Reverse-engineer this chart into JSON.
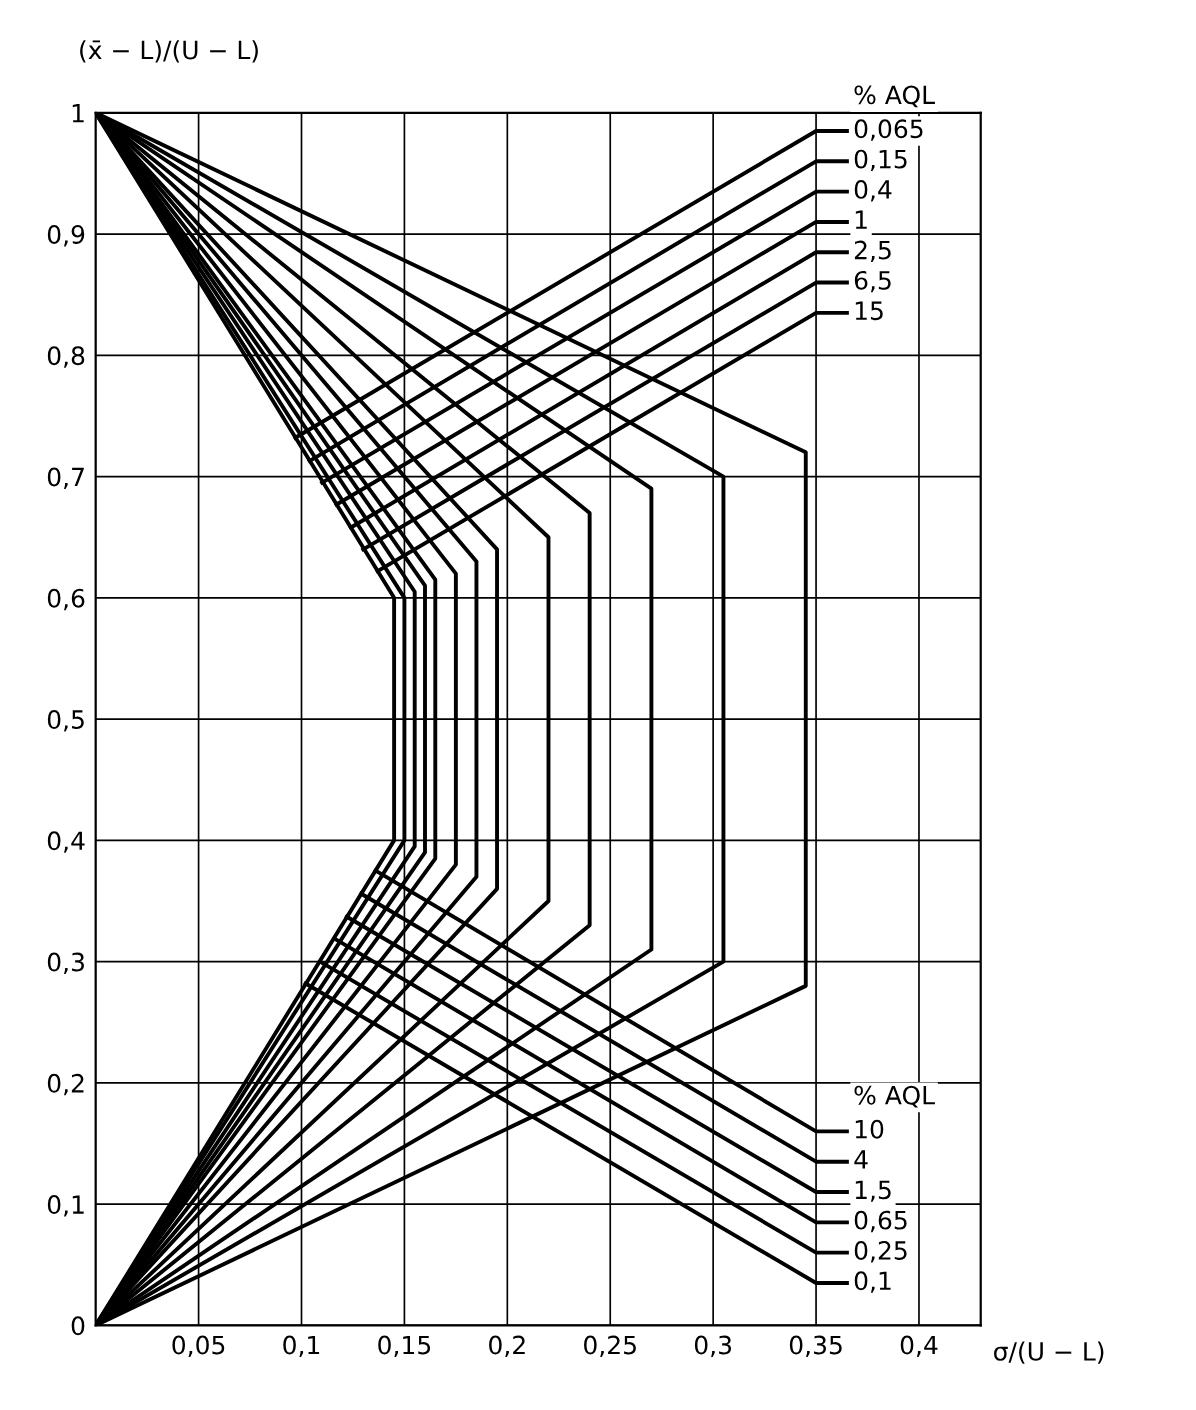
{
  "chart_data": {
    "type": "line",
    "xlabel": "σ/(U − L)",
    "ylabel": "(x̄ − L)/(U − L)",
    "annotations": [
      "% AQL",
      "% AQL"
    ],
    "xlim": [
      0,
      0.43
    ],
    "ylim": [
      0,
      1
    ],
    "xticks": [
      {
        "value": 0.05,
        "label": "0,05"
      },
      {
        "value": 0.1,
        "label": "0,1"
      },
      {
        "value": 0.15,
        "label": "0,15"
      },
      {
        "value": 0.2,
        "label": "0,2"
      },
      {
        "value": 0.25,
        "label": "0,25"
      },
      {
        "value": 0.3,
        "label": "0,3"
      },
      {
        "value": 0.35,
        "label": "0,35"
      },
      {
        "value": 0.4,
        "label": "0,4"
      }
    ],
    "yticks": [
      0,
      {
        "value": 0.1,
        "label": "0,1"
      },
      {
        "value": 0.2,
        "label": "0,2"
      },
      {
        "value": 0.3,
        "label": "0,3"
      },
      {
        "value": 0.4,
        "label": "0,4"
      },
      {
        "value": 0.5,
        "label": "0,5"
      },
      {
        "value": 0.6,
        "label": "0,6"
      },
      {
        "value": 0.7,
        "label": "0,7"
      },
      {
        "value": 0.8,
        "label": "0,8"
      },
      {
        "value": 0.9,
        "label": "0,9"
      },
      1
    ],
    "grid": true,
    "legend": false,
    "marker": "none",
    "line_style": "solid",
    "series": [
      {
        "color": "#000000",
        "x": [
          0,
          0.145,
          0.145,
          0
        ],
        "values": [
          0,
          0.4,
          0.6,
          1
        ]
      },
      {
        "color": "#000000",
        "x": [
          0,
          0.15,
          0.15,
          0
        ],
        "values": [
          0,
          0.4,
          0.6,
          1
        ]
      },
      {
        "color": "#000000",
        "x": [
          0,
          0.155,
          0.155,
          0
        ],
        "values": [
          0,
          0.395,
          0.605,
          1
        ]
      },
      {
        "color": "#000000",
        "x": [
          0,
          0.16,
          0.16,
          0
        ],
        "values": [
          0,
          0.39,
          0.61,
          1
        ]
      },
      {
        "color": "#000000",
        "x": [
          0,
          0.165,
          0.165,
          0
        ],
        "values": [
          0,
          0.385,
          0.615,
          1
        ]
      },
      {
        "color": "#000000",
        "x": [
          0,
          0.175,
          0.175,
          0
        ],
        "values": [
          0,
          0.38,
          0.62,
          1
        ]
      },
      {
        "color": "#000000",
        "x": [
          0,
          0.185,
          0.185,
          0
        ],
        "values": [
          0,
          0.37,
          0.63,
          1
        ]
      },
      {
        "color": "#000000",
        "x": [
          0,
          0.195,
          0.195,
          0
        ],
        "values": [
          0,
          0.36,
          0.64,
          1
        ]
      },
      {
        "color": "#000000",
        "x": [
          0,
          0.22,
          0.22,
          0
        ],
        "values": [
          0,
          0.35,
          0.65,
          1
        ]
      },
      {
        "color": "#000000",
        "x": [
          0,
          0.24,
          0.24,
          0
        ],
        "values": [
          0,
          0.33,
          0.67,
          1
        ]
      },
      {
        "color": "#000000",
        "x": [
          0,
          0.27,
          0.27,
          0
        ],
        "values": [
          0,
          0.31,
          0.69,
          1
        ]
      },
      {
        "color": "#000000",
        "x": [
          0,
          0.305,
          0.305,
          0
        ],
        "values": [
          0,
          0.3,
          0.7,
          1
        ]
      },
      {
        "color": "#000000",
        "x": [
          0,
          0.345,
          0.345,
          0
        ],
        "values": [
          0,
          0.28,
          0.72,
          1
        ]
      },
      {
        "name": "0,065",
        "color": "#000000",
        "x": [
          0.097,
          0.35,
          0.365
        ],
        "values": [
          0.732,
          0.985,
          0.985
        ]
      },
      {
        "name": "0,15",
        "color": "#000000",
        "x": [
          0.104,
          0.35,
          0.365
        ],
        "values": [
          0.713,
          0.96,
          0.96
        ]
      },
      {
        "name": "0,4",
        "color": "#000000",
        "x": [
          0.11,
          0.35,
          0.365
        ],
        "values": [
          0.695,
          0.935,
          0.935
        ]
      },
      {
        "name": "1",
        "color": "#000000",
        "x": [
          0.117,
          0.35,
          0.365
        ],
        "values": [
          0.677,
          0.91,
          0.91
        ]
      },
      {
        "name": "2,5",
        "color": "#000000",
        "x": [
          0.124,
          0.35,
          0.365
        ],
        "values": [
          0.658,
          0.885,
          0.885
        ]
      },
      {
        "name": "6,5",
        "color": "#000000",
        "x": [
          0.13,
          0.35,
          0.365
        ],
        "values": [
          0.64,
          0.86,
          0.86
        ]
      },
      {
        "name": "15",
        "color": "#000000",
        "x": [
          0.137,
          0.35,
          0.365
        ],
        "values": [
          0.622,
          0.835,
          0.835
        ]
      },
      {
        "name": "10",
        "color": "#000000",
        "x": [
          0.136,
          0.35,
          0.365
        ],
        "values": [
          0.375,
          0.16,
          0.16
        ]
      },
      {
        "name": "4",
        "color": "#000000",
        "x": [
          0.129,
          0.35,
          0.365
        ],
        "values": [
          0.356,
          0.135,
          0.135
        ]
      },
      {
        "name": "1,5",
        "color": "#000000",
        "x": [
          0.122,
          0.35,
          0.365
        ],
        "values": [
          0.337,
          0.11,
          0.11
        ]
      },
      {
        "name": "0,65",
        "color": "#000000",
        "x": [
          0.116,
          0.35,
          0.365
        ],
        "values": [
          0.319,
          0.085,
          0.085
        ]
      },
      {
        "name": "0,25",
        "color": "#000000",
        "x": [
          0.109,
          0.35,
          0.365
        ],
        "values": [
          0.3,
          0.06,
          0.06
        ]
      },
      {
        "name": "0,1",
        "color": "#000000",
        "x": [
          0.102,
          0.35,
          0.365
        ],
        "values": [
          0.282,
          0.035,
          0.035
        ]
      }
    ]
  }
}
